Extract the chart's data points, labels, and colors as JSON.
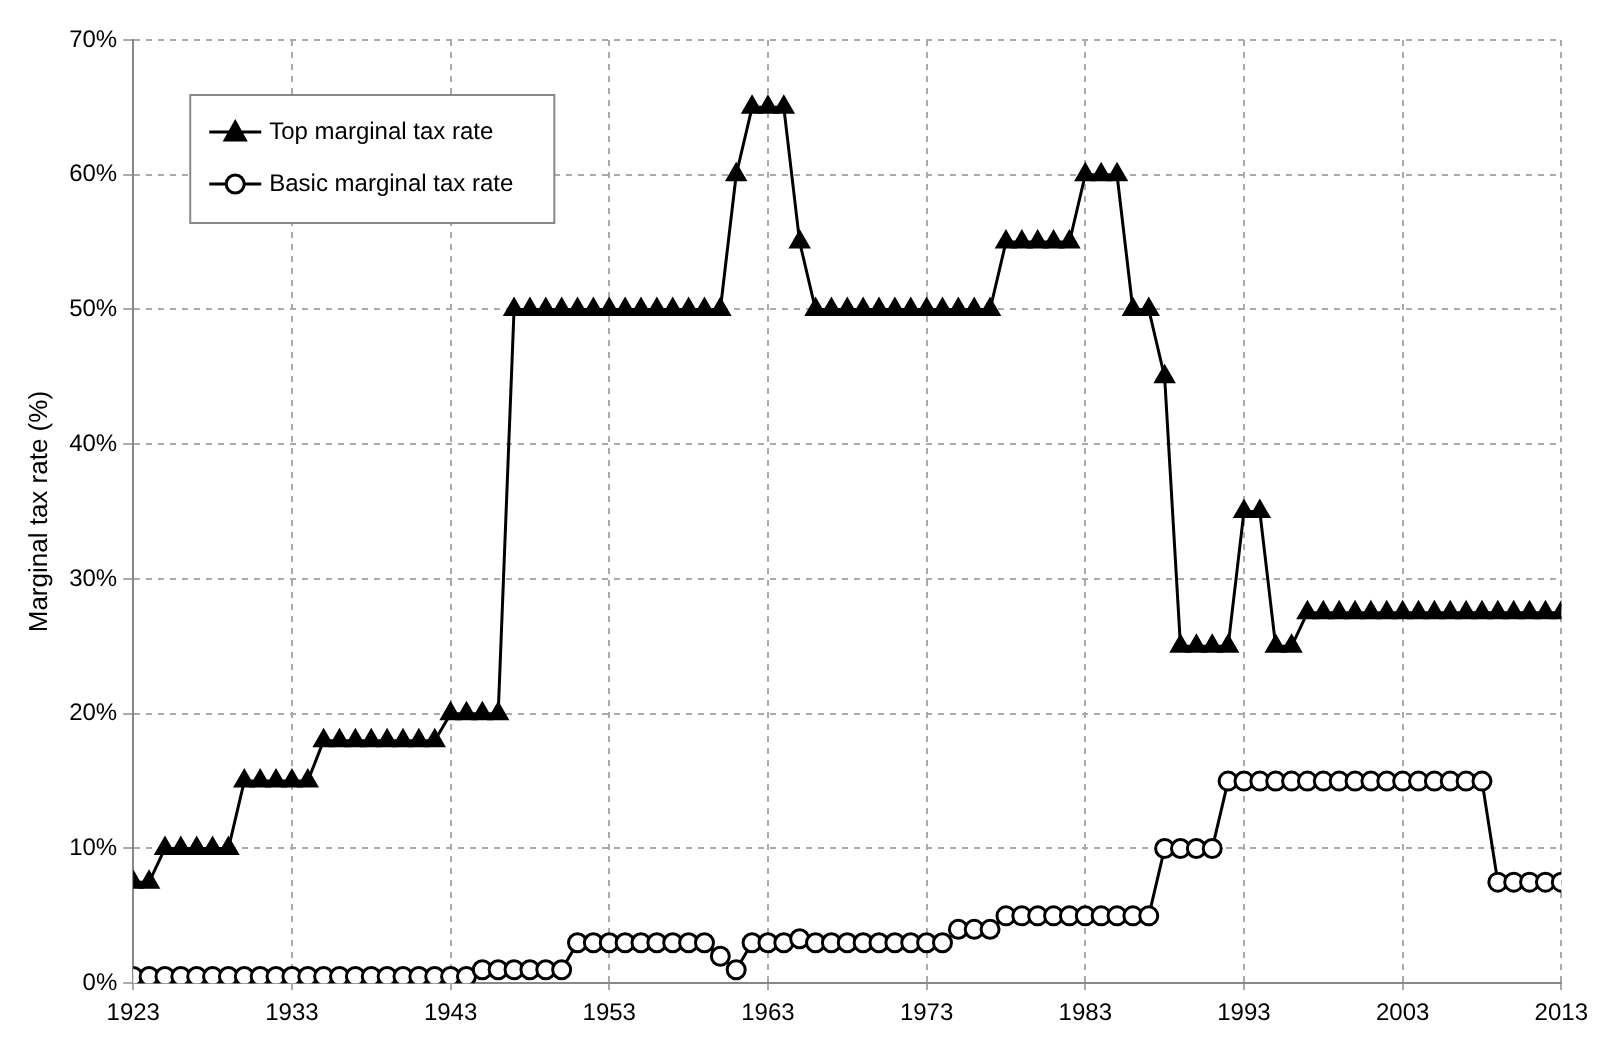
{
  "chart_data": {
    "type": "line",
    "ylabel": "Marginal tax rate (%)",
    "x": [
      1923,
      1924,
      1925,
      1926,
      1927,
      1928,
      1929,
      1930,
      1931,
      1932,
      1933,
      1934,
      1935,
      1936,
      1937,
      1938,
      1939,
      1940,
      1941,
      1942,
      1943,
      1944,
      1945,
      1946,
      1947,
      1948,
      1949,
      1950,
      1951,
      1952,
      1953,
      1954,
      1955,
      1956,
      1957,
      1958,
      1959,
      1960,
      1961,
      1962,
      1963,
      1964,
      1965,
      1966,
      1967,
      1968,
      1969,
      1970,
      1971,
      1972,
      1973,
      1974,
      1975,
      1976,
      1977,
      1978,
      1979,
      1980,
      1981,
      1982,
      1983,
      1984,
      1985,
      1986,
      1987,
      1988,
      1989,
      1990,
      1991,
      1992,
      1993,
      1994,
      1995,
      1996,
      1997,
      1998,
      1999,
      2000,
      2001,
      2002,
      2003,
      2004,
      2005,
      2006,
      2007,
      2008,
      2009,
      2010,
      2011,
      2012,
      2013
    ],
    "series": [
      {
        "name": "Top marginal tax rate",
        "color": "#000000",
        "marker": "triangle",
        "values": [
          7.5,
          7.5,
          10,
          10,
          10,
          10,
          10,
          15,
          15,
          15,
          15,
          15,
          18,
          18,
          18,
          18,
          18,
          18,
          18,
          18,
          20,
          20,
          20,
          20,
          50,
          50,
          50,
          50,
          50,
          50,
          50,
          50,
          50,
          50,
          50,
          50,
          50,
          50,
          60,
          65,
          65,
          65,
          55,
          50,
          50,
          50,
          50,
          50,
          50,
          50,
          50,
          50,
          50,
          50,
          50,
          55,
          55,
          55,
          55,
          55,
          60,
          60,
          60,
          50,
          50,
          45,
          25,
          25,
          25,
          25,
          35,
          35,
          25,
          25,
          27.5,
          27.5,
          27.5,
          27.5,
          27.5,
          27.5,
          27.5,
          27.5,
          27.5,
          27.5,
          27.5,
          27.5,
          27.5,
          27.5,
          27.5,
          27.5,
          27.5
        ]
      },
      {
        "name": "Basic marginal tax rate",
        "color": "#000000",
        "marker": "circle",
        "values": [
          0.5,
          0.5,
          0.5,
          0.5,
          0.5,
          0.5,
          0.5,
          0.5,
          0.5,
          0.5,
          0.5,
          0.5,
          0.5,
          0.5,
          0.5,
          0.5,
          0.5,
          0.5,
          0.5,
          0.5,
          0.5,
          0.5,
          1,
          1,
          1,
          1,
          1,
          1,
          3,
          3,
          3,
          3,
          3,
          3,
          3,
          3,
          3,
          2,
          1,
          3,
          3,
          3,
          3.3,
          3,
          3,
          3,
          3,
          3,
          3,
          3,
          3,
          3,
          4,
          4,
          4,
          5,
          5,
          5,
          5,
          5,
          5,
          5,
          5,
          5,
          5,
          10,
          10,
          10,
          10,
          15,
          15,
          15,
          15,
          15,
          15,
          15,
          15,
          15,
          15,
          15,
          15,
          15,
          15,
          15,
          15,
          15,
          7.5,
          7.5,
          7.5,
          7.5,
          7.5
        ]
      }
    ],
    "xlim": [
      1923,
      2013
    ],
    "xticks": [
      1923,
      1933,
      1943,
      1953,
      1963,
      1973,
      1983,
      1993,
      2003,
      2013
    ],
    "ylim": [
      0,
      70
    ],
    "yticks": [
      {
        "value": 0,
        "label": "0%"
      },
      {
        "value": 10,
        "label": "10%"
      },
      {
        "value": 20,
        "label": "20%"
      },
      {
        "value": 30,
        "label": "30%"
      },
      {
        "value": 40,
        "label": "40%"
      },
      {
        "value": 50,
        "label": "50%"
      },
      {
        "value": 60,
        "label": "60%"
      },
      {
        "value": 70,
        "label": "70%"
      }
    ],
    "grid": true,
    "legend": "top left",
    "line_style": "solid"
  }
}
